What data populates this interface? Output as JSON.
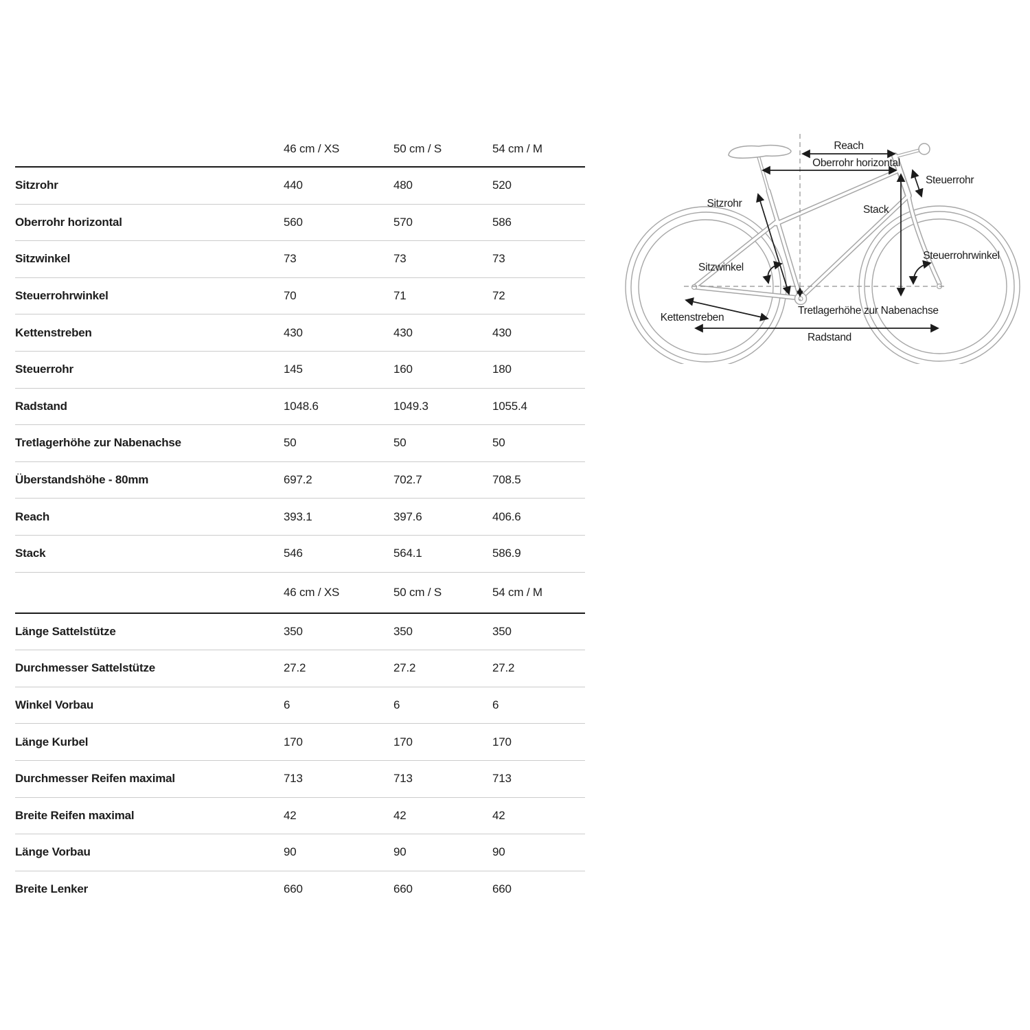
{
  "geometry_table": {
    "columns": [
      "46 cm / XS",
      "50 cm / S",
      "54 cm / M"
    ],
    "rows": [
      {
        "label": "Sitzrohr",
        "values": [
          "440",
          "480",
          "520"
        ]
      },
      {
        "label": "Oberrohr horizontal",
        "values": [
          "560",
          "570",
          "586"
        ]
      },
      {
        "label": "Sitzwinkel",
        "values": [
          "73",
          "73",
          "73"
        ]
      },
      {
        "label": "Steuerrohrwinkel",
        "values": [
          "70",
          "71",
          "72"
        ]
      },
      {
        "label": "Kettenstreben",
        "values": [
          "430",
          "430",
          "430"
        ]
      },
      {
        "label": "Steuerrohr",
        "values": [
          "145",
          "160",
          "180"
        ]
      },
      {
        "label": "Radstand",
        "values": [
          "1048.6",
          "1049.3",
          "1055.4"
        ]
      },
      {
        "label": "Tretlagerhöhe zur Nabenachse",
        "values": [
          "50",
          "50",
          "50"
        ]
      },
      {
        "label": "Überstandshöhe - 80mm",
        "values": [
          "697.2",
          "702.7",
          "708.5"
        ]
      },
      {
        "label": "Reach",
        "values": [
          "393.1",
          "397.6",
          "406.6"
        ]
      },
      {
        "label": "Stack",
        "values": [
          "546",
          "564.1",
          "586.9"
        ]
      }
    ]
  },
  "components_table": {
    "columns": [
      "46 cm / XS",
      "50 cm / S",
      "54 cm / M"
    ],
    "rows": [
      {
        "label": "Länge Sattelstütze",
        "values": [
          "350",
          "350",
          "350"
        ]
      },
      {
        "label": "Durchmesser Sattelstütze",
        "values": [
          "27.2",
          "27.2",
          "27.2"
        ]
      },
      {
        "label": "Winkel Vorbau",
        "values": [
          "6",
          "6",
          "6"
        ]
      },
      {
        "label": "Länge Kurbel",
        "values": [
          "170",
          "170",
          "170"
        ]
      },
      {
        "label": "Durchmesser Reifen maximal",
        "values": [
          "713",
          "713",
          "713"
        ]
      },
      {
        "label": "Breite Reifen maximal",
        "values": [
          "42",
          "42",
          "42"
        ]
      },
      {
        "label": "Länge Vorbau",
        "values": [
          "90",
          "90",
          "90"
        ]
      },
      {
        "label": "Breite Lenker",
        "values": [
          "660",
          "660",
          "660"
        ]
      }
    ]
  },
  "diagram": {
    "labels": {
      "reach": "Reach",
      "oberrohr": "Oberrohr horizontal",
      "steuerrohr": "Steuerrohr",
      "sitzrohr": "Sitzrohr",
      "stack": "Stack",
      "sitzwinkel": "Sitzwinkel",
      "steuerrohrwinkel": "Steuerrohrwinkel",
      "kettenstreben": "Kettenstreben",
      "tretlagerhoehe": "Tretlagerhöhe zur Nabenachse",
      "radstand": "Radstand"
    }
  },
  "colors": {
    "background": "#ffffff",
    "text": "#1d1d1d",
    "separator_thin": "#cbcbcb",
    "separator_thick": "#1a1a1a",
    "bike_outline": "#a6a6a6",
    "annotation": "#1b1b1b"
  }
}
